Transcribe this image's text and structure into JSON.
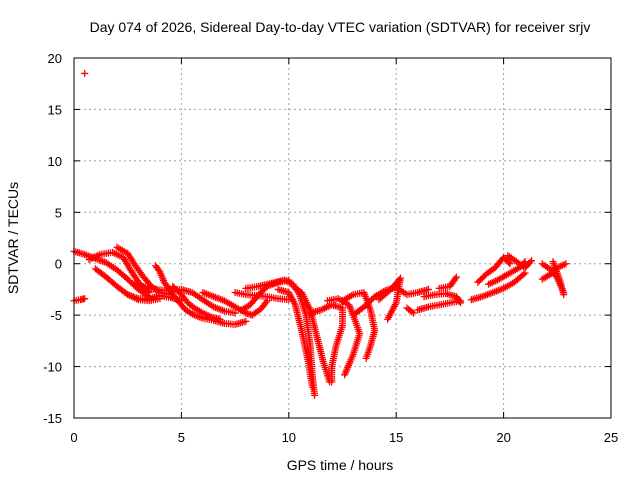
{
  "chart_data": {
    "type": "scatter",
    "title": "Day 074 of 2026, Sidereal Day-to-day VTEC variation (SDTVAR) for receiver srjv",
    "xlabel": "GPS time / hours",
    "ylabel": "SDTVAR / TECUs",
    "xlim": [
      0,
      25
    ],
    "ylim": [
      -15,
      20
    ],
    "xticks": [
      "0",
      "5",
      "10",
      "15",
      "20",
      "25"
    ],
    "yticks": [
      "20",
      "15",
      "10",
      "5",
      "0",
      "-5",
      "-10",
      "-15"
    ],
    "grid": true,
    "marker": "+",
    "color": "#ff0000",
    "series_note": "approximate traces of many satellite arcs",
    "outliers": [
      [
        0.5,
        18.5
      ]
    ],
    "arcs": [
      [
        [
          0.0,
          1.2
        ],
        [
          0.5,
          0.9
        ],
        [
          1.0,
          0.5
        ],
        [
          1.5,
          0.1
        ],
        [
          2.0,
          -0.6
        ],
        [
          2.5,
          -1.5
        ],
        [
          3.0,
          -2.5
        ],
        [
          3.5,
          -3.2
        ]
      ],
      [
        [
          0.0,
          -3.6
        ],
        [
          0.3,
          -3.5
        ],
        [
          0.5,
          -3.4
        ]
      ],
      [
        [
          0.7,
          0.4
        ],
        [
          1.2,
          0.9
        ],
        [
          1.8,
          1.1
        ],
        [
          2.3,
          0.6
        ],
        [
          2.6,
          -0.5
        ],
        [
          3.0,
          -1.8
        ],
        [
          3.5,
          -2.8
        ]
      ],
      [
        [
          1.0,
          -0.5
        ],
        [
          1.5,
          -1.3
        ],
        [
          2.0,
          -2.2
        ],
        [
          2.5,
          -3.0
        ],
        [
          3.0,
          -3.5
        ],
        [
          3.5,
          -3.6
        ],
        [
          4.0,
          -3.4
        ]
      ],
      [
        [
          2.0,
          1.6
        ],
        [
          2.5,
          1.0
        ],
        [
          2.8,
          0.0
        ],
        [
          3.2,
          -1.2
        ],
        [
          3.6,
          -2.2
        ],
        [
          4.0,
          -2.8
        ],
        [
          4.5,
          -3.0
        ]
      ],
      [
        [
          2.5,
          -3.0
        ],
        [
          3.0,
          -3.4
        ],
        [
          3.5,
          -3.4
        ],
        [
          4.0,
          -3.1
        ],
        [
          4.5,
          -3.3
        ],
        [
          5.0,
          -3.6
        ]
      ],
      [
        [
          3.8,
          -0.2
        ],
        [
          4.0,
          -0.8
        ],
        [
          4.2,
          -1.8
        ],
        [
          4.5,
          -2.7
        ],
        [
          4.8,
          -3.5
        ],
        [
          5.2,
          -4.5
        ],
        [
          5.6,
          -5.0
        ],
        [
          6.0,
          -5.3
        ],
        [
          6.5,
          -5.5
        ],
        [
          7.0,
          -5.8
        ],
        [
          7.5,
          -5.9
        ],
        [
          8.0,
          -5.6
        ]
      ],
      [
        [
          2.8,
          -2.0
        ],
        [
          3.5,
          -2.4
        ],
        [
          4.2,
          -2.6
        ],
        [
          5.0,
          -2.5
        ],
        [
          5.5,
          -2.8
        ],
        [
          6.0,
          -3.5
        ],
        [
          6.5,
          -4.2
        ],
        [
          7.0,
          -4.6
        ],
        [
          7.5,
          -4.8
        ]
      ],
      [
        [
          4.6,
          -2.2
        ],
        [
          5.0,
          -3.0
        ],
        [
          5.3,
          -3.8
        ],
        [
          5.6,
          -4.3
        ],
        [
          6.0,
          -4.8
        ],
        [
          6.4,
          -5.2
        ],
        [
          6.8,
          -5.4
        ]
      ],
      [
        [
          6.0,
          -2.8
        ],
        [
          6.5,
          -3.2
        ],
        [
          7.0,
          -3.6
        ],
        [
          7.5,
          -4.2
        ],
        [
          8.0,
          -4.8
        ],
        [
          8.3,
          -5.0
        ],
        [
          8.7,
          -4.4
        ],
        [
          9.0,
          -3.6
        ]
      ],
      [
        [
          7.5,
          -2.8
        ],
        [
          8.0,
          -3.0
        ],
        [
          8.5,
          -3.1
        ],
        [
          9.0,
          -3.2
        ],
        [
          9.5,
          -3.4
        ],
        [
          10.0,
          -3.5
        ]
      ],
      [
        [
          7.8,
          -4.5
        ],
        [
          8.2,
          -4.0
        ],
        [
          8.6,
          -3.0
        ],
        [
          9.0,
          -2.2
        ],
        [
          9.5,
          -1.8
        ],
        [
          10.0,
          -1.6
        ]
      ],
      [
        [
          8.0,
          -2.4
        ],
        [
          8.6,
          -2.2
        ],
        [
          9.2,
          -1.9
        ],
        [
          9.8,
          -1.6
        ],
        [
          10.2,
          -2.0
        ],
        [
          10.5,
          -3.0
        ],
        [
          10.8,
          -5.0
        ],
        [
          11.0,
          -8.0
        ],
        [
          11.1,
          -11.0
        ],
        [
          11.2,
          -12.8
        ]
      ],
      [
        [
          9.5,
          -2.5
        ],
        [
          10.0,
          -2.8
        ],
        [
          10.3,
          -4.0
        ],
        [
          10.6,
          -6.5
        ],
        [
          10.9,
          -9.5
        ],
        [
          11.1,
          -12.0
        ]
      ],
      [
        [
          10.2,
          -2.2
        ],
        [
          10.6,
          -2.8
        ],
        [
          11.0,
          -4.5
        ],
        [
          11.3,
          -7.0
        ],
        [
          11.6,
          -9.5
        ],
        [
          11.9,
          -11.5
        ]
      ],
      [
        [
          11.0,
          -4.8
        ],
        [
          11.5,
          -4.5
        ],
        [
          12.0,
          -4.0
        ],
        [
          12.5,
          -4.3
        ],
        [
          12.5,
          -6.0
        ],
        [
          12.2,
          -8.0
        ],
        [
          12.0,
          -10.0
        ],
        [
          12.0,
          -11.5
        ]
      ],
      [
        [
          11.8,
          -3.6
        ],
        [
          12.3,
          -3.4
        ],
        [
          12.8,
          -4.0
        ],
        [
          13.0,
          -5.0
        ],
        [
          13.3,
          -6.8
        ],
        [
          13.0,
          -8.8
        ],
        [
          12.6,
          -10.8
        ]
      ],
      [
        [
          12.5,
          -3.6
        ],
        [
          13.0,
          -3.0
        ],
        [
          13.5,
          -2.8
        ],
        [
          13.8,
          -4.5
        ],
        [
          14.0,
          -6.5
        ],
        [
          13.8,
          -8.0
        ],
        [
          13.6,
          -9.2
        ]
      ],
      [
        [
          13.0,
          -5.0
        ],
        [
          13.5,
          -4.2
        ],
        [
          14.0,
          -3.2
        ],
        [
          14.5,
          -2.6
        ],
        [
          15.0,
          -2.3
        ],
        [
          15.5,
          -3.0
        ],
        [
          16.0,
          -2.8
        ],
        [
          16.5,
          -2.5
        ]
      ],
      [
        [
          14.2,
          -3.5
        ],
        [
          14.8,
          -2.4
        ],
        [
          15.2,
          -1.4
        ],
        [
          15.0,
          -3.8
        ],
        [
          14.6,
          -5.4
        ]
      ],
      [
        [
          15.5,
          -4.3
        ],
        [
          15.8,
          -4.8
        ]
      ],
      [
        [
          16.0,
          -4.5
        ],
        [
          16.5,
          -4.2
        ],
        [
          17.0,
          -4.0
        ],
        [
          17.5,
          -3.8
        ],
        [
          18.0,
          -3.6
        ]
      ],
      [
        [
          16.3,
          -3.2
        ],
        [
          16.8,
          -3.0
        ],
        [
          17.3,
          -2.9
        ],
        [
          17.8,
          -3.2
        ],
        [
          18.0,
          -3.8
        ]
      ],
      [
        [
          17.0,
          -2.4
        ],
        [
          17.5,
          -2.2
        ],
        [
          17.8,
          -1.3
        ]
      ],
      [
        [
          18.5,
          -3.5
        ],
        [
          19.0,
          -3.2
        ],
        [
          19.5,
          -2.8
        ],
        [
          20.0,
          -2.4
        ],
        [
          20.5,
          -1.8
        ],
        [
          21.0,
          -0.9
        ]
      ],
      [
        [
          18.8,
          -1.8
        ],
        [
          19.2,
          -1.0
        ],
        [
          19.6,
          -0.4
        ],
        [
          20.0,
          0.6
        ],
        [
          20.3,
          0.0
        ]
      ],
      [
        [
          19.3,
          -2.0
        ],
        [
          19.8,
          -1.5
        ],
        [
          20.3,
          -0.9
        ],
        [
          20.8,
          -0.3
        ],
        [
          21.0,
          0.2
        ]
      ],
      [
        [
          20.2,
          0.8
        ],
        [
          20.6,
          0.2
        ],
        [
          21.0,
          -0.4
        ],
        [
          21.3,
          0.3
        ]
      ],
      [
        [
          21.8,
          0.0
        ],
        [
          22.2,
          -0.6
        ],
        [
          22.5,
          -1.4
        ],
        [
          22.8,
          -2.8
        ]
      ],
      [
        [
          21.8,
          -1.5
        ],
        [
          22.2,
          -1.0
        ],
        [
          22.5,
          -0.4
        ],
        [
          22.9,
          0.0
        ]
      ],
      [
        [
          22.3,
          0.2
        ],
        [
          22.6,
          -1.5
        ],
        [
          22.8,
          -3.0
        ]
      ]
    ]
  }
}
